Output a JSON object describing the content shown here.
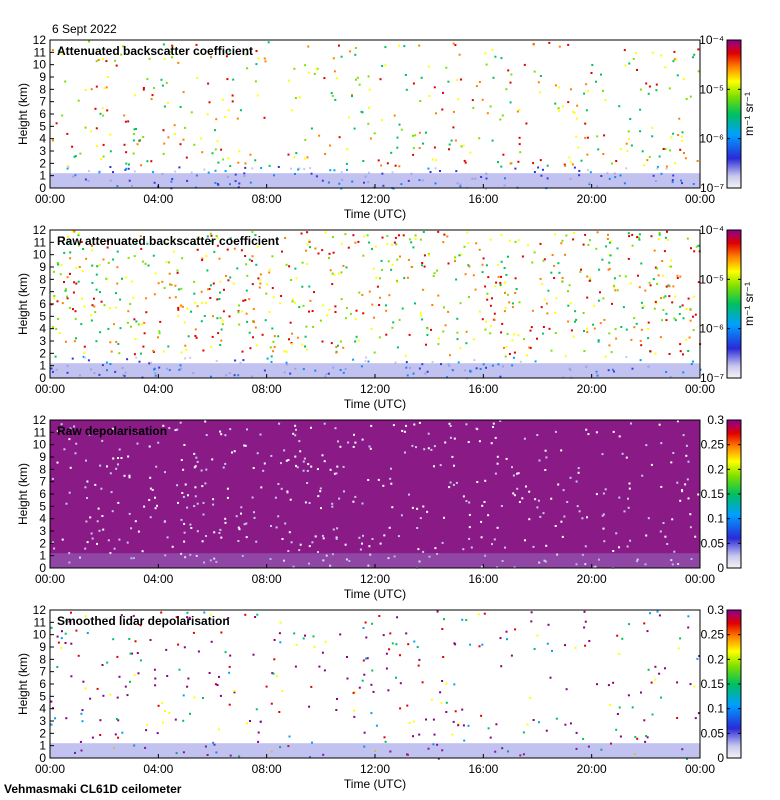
{
  "header": {
    "date": "6 Sept 2022"
  },
  "footer": {
    "instrument": "Vehmasmaki CL61D ceilometer"
  },
  "chart_data": [
    {
      "type": "heatmap",
      "title": "Attenuated backscatter coefficient",
      "xlabel": "Time (UTC)",
      "ylabel": "Height (km)",
      "xlim": [
        0,
        24
      ],
      "ylim": [
        0,
        12
      ],
      "x_ticks": [
        "00:00",
        "04:00",
        "08:00",
        "12:00",
        "16:00",
        "20:00",
        "00:00"
      ],
      "y_ticks": [
        "0",
        "1",
        "2",
        "3",
        "4",
        "5",
        "6",
        "7",
        "8",
        "9",
        "10",
        "11",
        "12"
      ],
      "colorbar": {
        "scale": "log",
        "unit": "m⁻¹ sr⁻¹",
        "ticks": [
          "10⁻⁷",
          "10⁻⁶",
          "10⁻⁵",
          "10⁻⁴"
        ],
        "range": [
          1e-07,
          0.0001
        ]
      }
    },
    {
      "type": "heatmap",
      "title": "Raw attenuated backscatter coefficient",
      "xlabel": "Time (UTC)",
      "ylabel": "Height (km)",
      "xlim": [
        0,
        24
      ],
      "ylim": [
        0,
        12
      ],
      "x_ticks": [
        "00:00",
        "04:00",
        "08:00",
        "12:00",
        "16:00",
        "20:00",
        "00:00"
      ],
      "y_ticks": [
        "0",
        "1",
        "2",
        "3",
        "4",
        "5",
        "6",
        "7",
        "8",
        "9",
        "10",
        "11",
        "12"
      ],
      "colorbar": {
        "scale": "log",
        "unit": "m⁻¹ sr⁻¹",
        "ticks": [
          "10⁻⁷",
          "10⁻⁶",
          "10⁻⁵",
          "10⁻⁴"
        ],
        "range": [
          1e-07,
          0.0001
        ]
      }
    },
    {
      "type": "heatmap",
      "title": "Raw depolarisation",
      "xlabel": "Time (UTC)",
      "ylabel": "Height (km)",
      "xlim": [
        0,
        24
      ],
      "ylim": [
        0,
        12
      ],
      "x_ticks": [
        "00:00",
        "04:00",
        "08:00",
        "12:00",
        "16:00",
        "20:00",
        "00:00"
      ],
      "y_ticks": [
        "0",
        "1",
        "2",
        "3",
        "4",
        "5",
        "6",
        "7",
        "8",
        "9",
        "10",
        "11",
        "12"
      ],
      "colorbar": {
        "scale": "linear",
        "unit": "",
        "ticks": [
          "0",
          "0.05",
          "0.1",
          "0.15",
          "0.2",
          "0.25",
          "0.3"
        ],
        "range": [
          0,
          0.3
        ]
      }
    },
    {
      "type": "heatmap",
      "title": "Smoothed lidar depolarisation",
      "xlabel": "Time (UTC)",
      "ylabel": "Height (km)",
      "xlim": [
        0,
        24
      ],
      "ylim": [
        0,
        12
      ],
      "x_ticks": [
        "00:00",
        "04:00",
        "08:00",
        "12:00",
        "16:00",
        "20:00",
        "00:00"
      ],
      "y_ticks": [
        "0",
        "1",
        "2",
        "3",
        "4",
        "5",
        "6",
        "7",
        "8",
        "9",
        "10",
        "11",
        "12"
      ],
      "colorbar": {
        "scale": "linear",
        "unit": "",
        "ticks": [
          "0",
          "0.05",
          "0.1",
          "0.15",
          "0.2",
          "0.25",
          "0.3"
        ],
        "range": [
          0,
          0.3
        ]
      }
    }
  ]
}
